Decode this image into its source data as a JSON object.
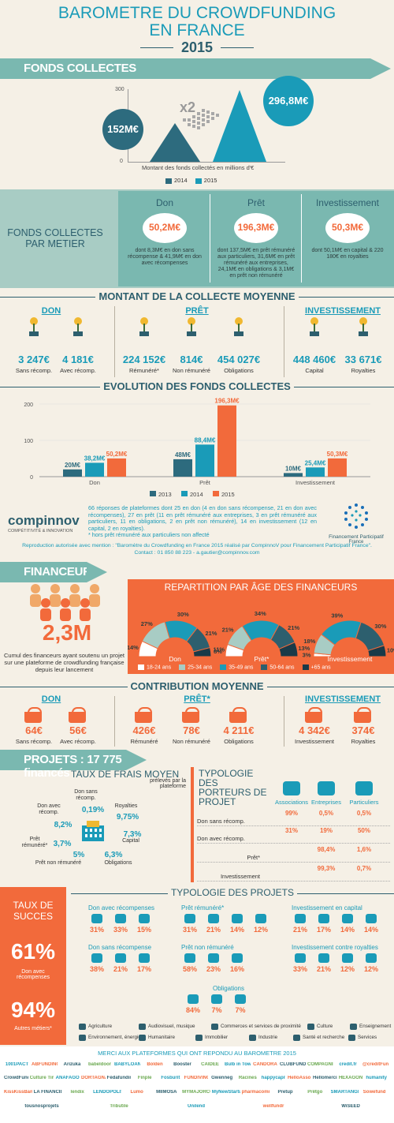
{
  "header": {
    "title_line1": "BAROMETRE DU CROWDFUNDING",
    "title_line2": "EN FRANCE",
    "year": "2015"
  },
  "fonds_collectes": {
    "banner": "FONDS COLLECTES",
    "ymax": "300",
    "ymin": "0",
    "multiplier": "x2",
    "value_2014": "152M€",
    "value_2015": "296,8M€",
    "caption": "Montant des fonds collectés en millions d'€",
    "legend": [
      "2014",
      "2015"
    ]
  },
  "par_metier": {
    "label_line1": "FONDS COLLECTES",
    "label_line2": "PAR METIER",
    "cols": [
      {
        "name": "Don",
        "value": "50,2M€",
        "desc": "dont 8,3M€ en don sans récompense & 41,9M€ en don avec récompenses"
      },
      {
        "name": "Prêt",
        "value": "196,3M€",
        "desc": "dont 137,5M€ en prêt rémunéré aux particuliers, 31,6M€ en prêt rémunéré aux entreprises, 24,1M€ en obligations & 3,1M€ en prêt non rémunéré"
      },
      {
        "name": "Investissement",
        "value": "50,3M€",
        "desc": "dont 50,1M€ en capital & 220 180€ en royalties"
      }
    ]
  },
  "collecte_moyenne": {
    "title": "MONTANT DE LA COLLECTE MOYENNE",
    "groups": [
      "DON",
      "PRÊT",
      "INVESTISSEMENT"
    ],
    "items": [
      {
        "value": "3 247€",
        "label": "Sans récomp."
      },
      {
        "value": "4 181€",
        "label": "Avec récomp."
      },
      {
        "value": "224 152€",
        "label": "Rémunéré*"
      },
      {
        "value": "814€",
        "label": "Non rémunéré"
      },
      {
        "value": "454 027€",
        "label": "Obligations"
      },
      {
        "value": "448 460€",
        "label": "Capital"
      },
      {
        "value": "33 671€",
        "label": "Royalties"
      }
    ]
  },
  "chart_data": [
    {
      "type": "bar",
      "title": "EVOLUTION DES FONDS COLLECTES",
      "categories": [
        "Don",
        "Prêt",
        "Investissement"
      ],
      "series": [
        {
          "name": "2013",
          "values": [
            20,
            48,
            10
          ],
          "labels": [
            "20M€",
            "48M€",
            "10M€"
          ],
          "color": "#2d6b7e"
        },
        {
          "name": "2014",
          "values": [
            38.2,
            88.4,
            25.4
          ],
          "labels": [
            "38,2M€",
            "88,4M€",
            "25,4M€"
          ],
          "color": "#1a9bb8"
        },
        {
          "name": "2015",
          "values": [
            50.2,
            196.3,
            50.3
          ],
          "labels": [
            "50,2M€",
            "196,3M€",
            "50,3M€"
          ],
          "color": "#f26a3b"
        }
      ],
      "yticks": [
        "0",
        "100",
        "200"
      ],
      "ylim": [
        0,
        200
      ]
    },
    {
      "type": "bar",
      "categories": [
        "2014",
        "2015"
      ],
      "values": [
        152,
        296.8
      ],
      "ylim": [
        0,
        300
      ]
    }
  ],
  "source": {
    "logo_text": "compinnov",
    "logo_sub": "COMPÉTITIVITÉ & INNOVATION",
    "text": "66 réponses de plateformes dont 25 en don (4 en don sans récompense, 21 en don avec récompenses), 27 en prêt (11 en prêt rémunéré aux entreprises, 3 en prêt rémunéré aux particuliers, 11 en obligations, 2 en prêt non rémunéré), 14 en investissement (12 en capital, 2 en royalties).",
    "note": "* hors prêt rémunéré aux particuliers non affecté",
    "repro": "Reproduction autorisée avec mention : \"Baromètre du Crowdfunding en France 2015 réalisé par CompinnoV pour Financement Participatif France\".",
    "contact": "Contact : 01 850 88 223 - a.gautier@compinnov.com",
    "fpf_name": "Financement Participatif",
    "fpf_sub": "France"
  },
  "financeurs": {
    "banner": "FINANCEURS",
    "total": "2,3M",
    "total_desc": "Cumul des financeurs ayant soutenu un projet sur une plateforme de crowdfunding française depuis leur lancement",
    "age_title": "REPARTITION PAR ÂGE DES FINANCEURS",
    "age_charts": [
      {
        "name": "Don",
        "pcts": [
          "14%",
          "27%",
          "30%",
          "21%",
          "8%"
        ]
      },
      {
        "name": "Prêt*",
        "pcts": [
          "11%",
          "21%",
          "34%",
          "21%",
          "13%"
        ]
      },
      {
        "name": "Investissement",
        "pcts": [
          "3%",
          "18%",
          "39%",
          "30%",
          "10%"
        ]
      }
    ],
    "age_legend": [
      "18-24 ans",
      "25-34 ans",
      "35-49 ans",
      "50-64 ans",
      "+65 ans"
    ],
    "age_colors": [
      "#ffffff",
      "#a8ccc4",
      "#1a9bb8",
      "#2d5f6e",
      "#1a3a48"
    ]
  },
  "contribution": {
    "title": "CONTRIBUTION MOYENNE",
    "groups": [
      "DON",
      "PRÊT*",
      "INVESTISSEMENT"
    ],
    "items": [
      {
        "value": "64€",
        "label": "Sans récomp."
      },
      {
        "value": "56€",
        "label": "Avec récomp."
      },
      {
        "value": "426€",
        "label": "Rémunéré"
      },
      {
        "value": "78€",
        "label": "Non rémunéré"
      },
      {
        "value": "4 211€",
        "label": "Obligations"
      },
      {
        "value": "4 342€",
        "label": "Investissement"
      },
      {
        "value": "374€",
        "label": "Royalties"
      }
    ]
  },
  "projets": {
    "banner": "PROJETS : 17 775 financés",
    "frais_title": "TAUX DE FRAIS MOYEN",
    "frais_sub": "prélevés par la plateforme",
    "frais": [
      {
        "label": "Don sans récomp.",
        "value": "0,19%"
      },
      {
        "label": "Don avec récomp.",
        "value": "8,2%"
      },
      {
        "label": "Royalties",
        "value": "9,75%"
      },
      {
        "label": "Prêt rémunéré*",
        "value": "3,7%"
      },
      {
        "label": "Capital",
        "value": "7,3%"
      },
      {
        "label": "Prêt non rémunéré",
        "value": "5%"
      },
      {
        "label": "Obligations",
        "value": "6,3%"
      }
    ],
    "typo_porteurs_title": "TYPOLOGIE DES PORTEURS DE PROJET",
    "porteurs_cols": [
      "Associations",
      "Entreprises",
      "Particuliers"
    ],
    "porteurs_rows": [
      {
        "label": "Don sans récomp.",
        "values": [
          "99%",
          "0,5%",
          "0,5%"
        ]
      },
      {
        "label": "Don avec récomp.",
        "values": [
          "31%",
          "19%",
          "50%"
        ]
      },
      {
        "label": "Prêt*",
        "values": [
          "",
          "98,4%",
          "1,6%"
        ]
      },
      {
        "label": "Investissement",
        "values": [
          "",
          "99,3%",
          "0,7%"
        ]
      }
    ]
  },
  "succes": {
    "title_line1": "TAUX DE",
    "title_line2": "SUCCES",
    "pct1": "61%",
    "label1": "Don avec récompenses",
    "pct2": "94%",
    "label2": "Autres métiers*"
  },
  "typo_projets": {
    "title": "TYPOLOGIE DES PROJETS",
    "blocks": [
      {
        "name": "Don avec récompenses",
        "values": [
          "31%",
          "33%",
          "15%"
        ]
      },
      {
        "name": "Prêt rémunéré*",
        "values": [
          "31%",
          "21%",
          "14%",
          "12%"
        ]
      },
      {
        "name": "Investissement en capital",
        "values": [
          "21%",
          "17%",
          "14%",
          "14%"
        ]
      },
      {
        "name": "Don sans récompense",
        "values": [
          "38%",
          "21%",
          "17%"
        ]
      },
      {
        "name": "Prêt non rémunéré",
        "values": [
          "58%",
          "23%",
          "16%"
        ]
      },
      {
        "name": "Investissement contre royalties",
        "values": [
          "33%",
          "21%",
          "12%",
          "12%"
        ]
      },
      {
        "name": "Obligations",
        "values": [
          "84%",
          "7%",
          "7%"
        ]
      }
    ],
    "legend": [
      "Agriculture",
      "Audiovisuel, musique",
      "Commerces et services de proximité",
      "Culture",
      "Enseignement",
      "Environnement, énergie",
      "Humanitaire",
      "Immobilier",
      "Industrie",
      "Santé et recherche",
      "Services"
    ]
  },
  "merci": {
    "title": "MERCI AUX PLATEFORMES QUI ONT REPONDU AU BAROMETRE 2015",
    "logos": [
      "1001PACT",
      "ABFUNDING",
      "Arizuka",
      "babeldoor",
      "BABYLOAN",
      "Bolden",
      "Booster",
      "CAIDÉE",
      "Bulb in Town",
      "CANDORA",
      "CLUBFUNDING",
      "COMPAGNIEGNY",
      "credit.fr",
      "@creditFunding",
      "CrowdFunding",
      "Culture Time",
      "ANAFAGO",
      "DORTAGNANS",
      "Fédafunding",
      "Finple",
      "Fosburit",
      "FUNDIVINO",
      "Gwenneg",
      "Racines",
      "happycapital",
      "HelloAsso",
      "Hellomerci",
      "HEXAGON",
      "humanity",
      "KissKissBankBank",
      "LA FINANCIÈRE",
      "lendix",
      "LENDOPOLIS",
      "Lumo",
      "MIIMOSA",
      "MYMAJORCOMPANY",
      "MyNewStartup",
      "pharmacomm",
      "Pretup",
      "Prêtgo",
      "SMARTANGELS",
      "Sowefund",
      "tousnosprojets",
      "Tributile",
      "Unilend",
      "wellfundr",
      "WiSEED"
    ]
  }
}
